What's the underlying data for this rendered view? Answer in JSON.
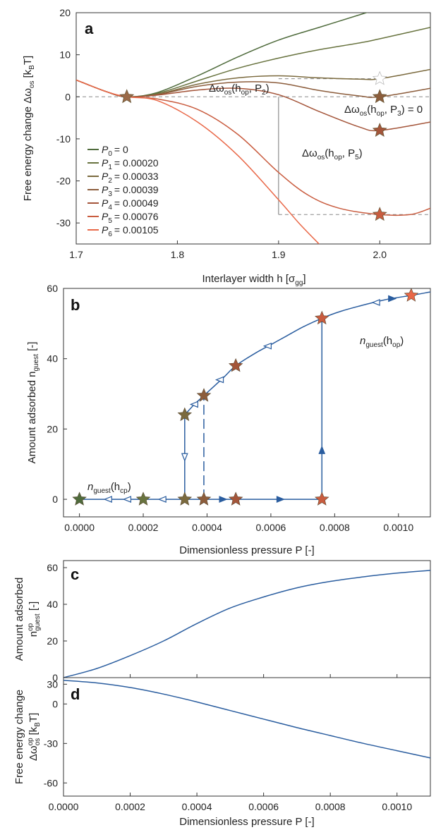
{
  "chart_data": [
    {
      "panel": "a",
      "type": "line",
      "ylabel": "Free energy change Δω",
      "ylabel_sub": "os",
      "ylabel_unit": "[k",
      "ylabel_unit_sub": "B",
      "ylabel_unit_end": "T]",
      "xlabel": "Interlayer width h [σ",
      "xlabel_sub": "gg",
      "xlabel_end": "]",
      "xlim": [
        1.7,
        2.05
      ],
      "ylim": [
        -35,
        20
      ],
      "xticks": [
        "1.7",
        "1.8",
        "1.9",
        "2.0"
      ],
      "yticks": [
        "20",
        "10",
        "0",
        "-10",
        "-20",
        "-30"
      ],
      "colors": [
        "#4f6b3c",
        "#68733f",
        "#7b6a3e",
        "#8c5d3c",
        "#a4553a",
        "#c95c3f",
        "#e96848"
      ],
      "series": [
        {
          "name": "P₀ = 0",
          "label_main": "P",
          "label_sub": "0",
          "label_value": "= 0",
          "x": [
            1.7,
            1.73,
            1.75,
            1.78,
            1.82,
            1.86,
            1.9,
            1.94,
            1.98,
            2.0
          ],
          "y": [
            4,
            1.2,
            0,
            1,
            5,
            9.5,
            13.5,
            16.5,
            19.5,
            21
          ]
        },
        {
          "name": "P₁ = 0.00020",
          "label_main": "P",
          "label_sub": "1",
          "label_value": "= 0.00020",
          "x": [
            1.7,
            1.73,
            1.75,
            1.78,
            1.82,
            1.86,
            1.9,
            1.94,
            1.98,
            2.0,
            2.05
          ],
          "y": [
            4,
            1.2,
            0,
            0.8,
            3.8,
            6.8,
            9.2,
            11.2,
            12.8,
            13.8,
            16.5
          ]
        },
        {
          "name": "P₂ = 0.00033",
          "label_main": "P",
          "label_sub": "2",
          "label_value": "= 0.00033",
          "x": [
            1.7,
            1.73,
            1.75,
            1.78,
            1.82,
            1.86,
            1.9,
            1.94,
            1.98,
            2.0,
            2.05
          ],
          "y": [
            4,
            1.2,
            0,
            0.6,
            3,
            4.5,
            5,
            4.5,
            4.2,
            4.3,
            6.5
          ]
        },
        {
          "name": "P₃ = 0.00039",
          "label_main": "P",
          "label_sub": "3",
          "label_value": "= 0.00039",
          "x": [
            1.7,
            1.73,
            1.75,
            1.78,
            1.82,
            1.86,
            1.9,
            1.94,
            1.98,
            2.0,
            2.05
          ],
          "y": [
            4,
            1.2,
            0,
            0.5,
            2.5,
            3.5,
            3.3,
            1.5,
            0.2,
            0,
            2
          ]
        },
        {
          "name": "P₄ = 0.00049",
          "label_main": "P",
          "label_sub": "4",
          "label_value": "= 0.00049",
          "x": [
            1.7,
            1.73,
            1.75,
            1.78,
            1.82,
            1.86,
            1.9,
            1.94,
            1.98,
            2.0,
            2.05
          ],
          "y": [
            4,
            1.2,
            0,
            0.4,
            1.6,
            2,
            0.5,
            -3.5,
            -7.2,
            -8,
            -6
          ]
        },
        {
          "name": "P₅ = 0.00076",
          "label_main": "P",
          "label_sub": "5",
          "label_value": "= 0.00076",
          "x": [
            1.7,
            1.73,
            1.75,
            1.78,
            1.82,
            1.86,
            1.9,
            1.93,
            1.96,
            2.0,
            2.03,
            2.05
          ],
          "y": [
            4,
            1.2,
            0,
            -0.5,
            -3,
            -9,
            -18,
            -23.5,
            -26.5,
            -28,
            -28,
            -26.5
          ]
        },
        {
          "name": "P₆ = 0.00105",
          "label_main": "P",
          "label_sub": "6",
          "label_value": "= 0.00105",
          "x": [
            1.7,
            1.73,
            1.75,
            1.78,
            1.82,
            1.86,
            1.9,
            1.92,
            1.94
          ],
          "y": [
            4,
            1.2,
            0,
            -0.9,
            -6,
            -14,
            -24.5,
            -30,
            -35
          ]
        }
      ],
      "markers": [
        {
          "x": 1.75,
          "y": 0,
          "color": "#9b6a48",
          "open": false
        },
        {
          "x": 2.0,
          "y": 4.3,
          "color": "#ffffff",
          "open": true
        },
        {
          "x": 2.0,
          "y": 0,
          "color": "#8c5d3c",
          "open": false
        },
        {
          "x": 2.0,
          "y": -8,
          "color": "#a4553a",
          "open": false
        },
        {
          "x": 2.0,
          "y": -28,
          "color": "#c95c3f",
          "open": false
        }
      ],
      "annotations": [
        {
          "main": "Δω",
          "sub1": "os",
          "mid": "(h",
          "sub2": "op",
          "end": ", P",
          "sub3": "2",
          "close": ")"
        },
        {
          "main": "Δω",
          "sub1": "os",
          "mid": "(h",
          "sub2": "op",
          "end": ", P",
          "sub3": "3",
          "close": ") = 0"
        },
        {
          "main": "Δω",
          "sub1": "os",
          "mid": "(h",
          "sub2": "op",
          "end": ", P",
          "sub3": "5",
          "close": ")"
        }
      ]
    },
    {
      "panel": "b",
      "type": "scatter",
      "ylabel": "Amount adsorbed n",
      "ylabel_sub": "guest",
      "ylabel_end": " [-]",
      "xlabel": "Dimensionless pressure P [-]",
      "xlim": [
        -5e-05,
        0.0011
      ],
      "ylim": [
        -5,
        60
      ],
      "xticks": [
        "0.0000",
        "0.0002",
        "0.0004",
        "0.0006",
        "0.0008",
        "0.0010"
      ],
      "yticks": [
        "60",
        "40",
        "20",
        "0"
      ],
      "line_color": "#2a5d9f",
      "branch_op": {
        "x": [
          0.00033,
          0.00036,
          0.00039,
          0.00045,
          0.00049,
          0.00055,
          0.0006,
          0.00065,
          0.0007,
          0.00076,
          0.00082,
          0.0009,
          0.00097,
          0.00104,
          0.0011
        ],
        "y": [
          24,
          27,
          29.5,
          34.5,
          38,
          41.5,
          44,
          46.5,
          49,
          51.5,
          53.5,
          55.5,
          57,
          58,
          59
        ]
      },
      "branch_cp": {
        "x": [
          0,
          0.00076
        ],
        "y": [
          0,
          0
        ]
      },
      "stars": [
        {
          "x": 0.0,
          "y": 0,
          "color": "#4f6b3c"
        },
        {
          "x": 0.0002,
          "y": 0,
          "color": "#68733f"
        },
        {
          "x": 0.00033,
          "y": 0,
          "color": "#7b6a3e"
        },
        {
          "x": 0.00039,
          "y": 0,
          "color": "#8c5d3c"
        },
        {
          "x": 0.00049,
          "y": 0,
          "color": "#a4553a"
        },
        {
          "x": 0.00076,
          "y": 0,
          "color": "#c95c3f"
        },
        {
          "x": 0.00033,
          "y": 24,
          "color": "#7b6a3e"
        },
        {
          "x": 0.00039,
          "y": 29.5,
          "color": "#8c5d3c"
        },
        {
          "x": 0.00049,
          "y": 38,
          "color": "#a4553a"
        },
        {
          "x": 0.00076,
          "y": 51.5,
          "color": "#c95c3f"
        },
        {
          "x": 0.00104,
          "y": 58,
          "color": "#e96848"
        }
      ],
      "labels": [
        {
          "main": "n",
          "sub1": "guest",
          "mid": "(h",
          "sub2": "op",
          "close": ")"
        },
        {
          "main": "n",
          "sub1": "guest",
          "mid": "(h",
          "sub2": "cp",
          "close": ")"
        }
      ]
    },
    {
      "panel": "c",
      "type": "line",
      "ylabel_line1": "Amount adsorbed",
      "ylabel_n": "n",
      "ylabel_sup": "op",
      "ylabel_sub": "guest",
      "ylabel_end": " [-]",
      "xlim": [
        0,
        0.0011
      ],
      "ylim": [
        0,
        60
      ],
      "yticks": [
        "60",
        "40",
        "20",
        "0"
      ],
      "x": [
        0,
        0.0001,
        0.0002,
        0.0003,
        0.0004,
        0.0005,
        0.0006,
        0.0007,
        0.0008,
        0.0009,
        0.001,
        0.0011
      ],
      "y": [
        0,
        5,
        12,
        20,
        29.5,
        38,
        44,
        49,
        52.5,
        55,
        57,
        58.5
      ]
    },
    {
      "panel": "d",
      "type": "line",
      "ylabel_line1": "Free energy change",
      "ylabel_main": "Δω",
      "ylabel_sup": "op",
      "ylabel_sub": "os",
      "ylabel_unit": " [k",
      "ylabel_unit_sub": "B",
      "ylabel_unit_end": "T]",
      "xlabel": "Dimensionless pressure P [-]",
      "xlim": [
        0,
        0.0011
      ],
      "ylim": [
        -70,
        20
      ],
      "xticks": [
        "0.0000",
        "0.0002",
        "0.0004",
        "0.0006",
        "0.0008",
        "0.0010"
      ],
      "yticks": [
        "0",
        "-30",
        "-60"
      ],
      "yticks_extra": [
        "30"
      ],
      "x": [
        0,
        0.0001,
        0.0002,
        0.0003,
        0.0004,
        0.0005,
        0.0006,
        0.0007,
        0.0008,
        0.0009,
        0.001,
        0.0011
      ],
      "y": [
        18,
        16,
        12.5,
        7.5,
        1.5,
        -5,
        -11.5,
        -18,
        -24,
        -30,
        -35.5,
        -41
      ]
    }
  ]
}
